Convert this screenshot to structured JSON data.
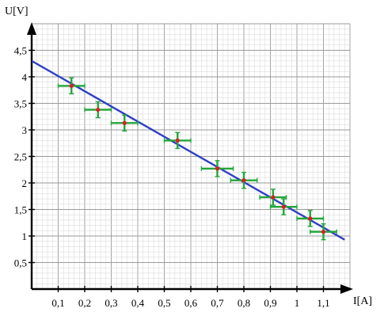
{
  "chart_data": {
    "type": "scatter",
    "xlabel": "I[A]",
    "ylabel": "U[V]",
    "xlim": [
      0,
      1.2
    ],
    "ylim": [
      0,
      4.9
    ],
    "grid": true,
    "x_ticks": [
      {
        "value": 0.1,
        "label": "0,1"
      },
      {
        "value": 0.2,
        "label": "0,2"
      },
      {
        "value": 0.3,
        "label": "0,3"
      },
      {
        "value": 0.4,
        "label": "0,4"
      },
      {
        "value": 0.5,
        "label": "0,5"
      },
      {
        "value": 0.6,
        "label": "0,6"
      },
      {
        "value": 0.7,
        "label": "0,7"
      },
      {
        "value": 0.8,
        "label": "0,8"
      },
      {
        "value": 0.9,
        "label": "0,9"
      },
      {
        "value": 1.0,
        "label": "1"
      },
      {
        "value": 1.1,
        "label": "1,1"
      }
    ],
    "y_ticks": [
      {
        "value": 0.5,
        "label": "0,5"
      },
      {
        "value": 1,
        "label": "1"
      },
      {
        "value": 1.5,
        "label": "1,5"
      },
      {
        "value": 2,
        "label": "2"
      },
      {
        "value": 2.5,
        "label": "2,5"
      },
      {
        "value": 3,
        "label": "3"
      },
      {
        "value": 3.5,
        "label": "3,5"
      },
      {
        "value": 4,
        "label": "4"
      },
      {
        "value": 4.5,
        "label": "4,5"
      }
    ],
    "points": [
      {
        "x": 0.15,
        "y": 3.83,
        "xerr": 0.05,
        "yerr": 0.15
      },
      {
        "x": 0.25,
        "y": 3.38,
        "xerr": 0.05,
        "yerr": 0.15
      },
      {
        "x": 0.35,
        "y": 3.13,
        "xerr": 0.05,
        "yerr": 0.15
      },
      {
        "x": 0.55,
        "y": 2.8,
        "xerr": 0.05,
        "yerr": 0.15
      },
      {
        "x": 0.7,
        "y": 2.27,
        "xerr": 0.06,
        "yerr": 0.15
      },
      {
        "x": 0.8,
        "y": 2.05,
        "xerr": 0.05,
        "yerr": 0.15
      },
      {
        "x": 0.91,
        "y": 1.73,
        "xerr": 0.05,
        "yerr": 0.15
      },
      {
        "x": 0.95,
        "y": 1.55,
        "xerr": 0.05,
        "yerr": 0.15
      },
      {
        "x": 1.05,
        "y": 1.33,
        "xerr": 0.05,
        "yerr": 0.15
      },
      {
        "x": 1.1,
        "y": 1.08,
        "xerr": 0.05,
        "yerr": 0.15
      }
    ],
    "fit_line": {
      "x": [
        0,
        1.18
      ],
      "y": [
        4.3,
        0.93
      ]
    },
    "colors": {
      "grid_major": "#9a9a9a",
      "grid_minor": "#d4d4d4",
      "axis": "#000000",
      "points": "#d92020",
      "error_bars": "#22a63a",
      "fit_line": "#2f3fc4"
    }
  }
}
